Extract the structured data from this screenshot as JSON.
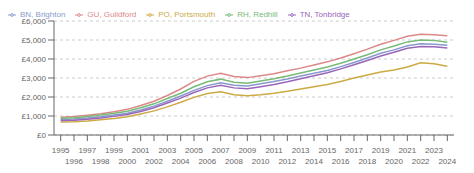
{
  "chart_data": {
    "type": "line",
    "x": [
      1995,
      1996,
      1997,
      1998,
      1999,
      2000,
      2001,
      2002,
      2003,
      2004,
      2005,
      2006,
      2007,
      2008,
      2009,
      2010,
      2011,
      2012,
      2013,
      2014,
      2015,
      2016,
      2017,
      2018,
      2019,
      2020,
      2021,
      2022,
      2023,
      2024
    ],
    "series": [
      {
        "name": "BN, Brighton",
        "color": "#8899cc",
        "values": [
          820,
          840,
          890,
          960,
          1050,
          1150,
          1320,
          1520,
          1780,
          2050,
          2350,
          2600,
          2750,
          2620,
          2580,
          2700,
          2820,
          2950,
          3100,
          3250,
          3400,
          3600,
          3820,
          4050,
          4300,
          4480,
          4700,
          4800,
          4780,
          4720
        ]
      },
      {
        "name": "GU, Guildford",
        "color": "#dd8888",
        "values": [
          940,
          970,
          1040,
          1120,
          1220,
          1350,
          1550,
          1780,
          2080,
          2420,
          2820,
          3100,
          3250,
          3080,
          3020,
          3120,
          3220,
          3380,
          3520,
          3680,
          3850,
          4050,
          4280,
          4520,
          4780,
          4980,
          5200,
          5300,
          5280,
          5220
        ]
      },
      {
        "name": "PO, Portsmouth",
        "color": "#ccaa44",
        "values": [
          680,
          700,
          740,
          800,
          870,
          960,
          1100,
          1270,
          1480,
          1720,
          1980,
          2180,
          2280,
          2120,
          2070,
          2120,
          2200,
          2300,
          2420,
          2540,
          2660,
          2820,
          3000,
          3160,
          3320,
          3420,
          3580,
          3800,
          3750,
          3620
        ]
      },
      {
        "name": "RH, Redhill",
        "color": "#77bb77",
        "values": [
          880,
          910,
          970,
          1050,
          1140,
          1250,
          1430,
          1640,
          1920,
          2200,
          2540,
          2800,
          2940,
          2780,
          2720,
          2840,
          2960,
          3100,
          3260,
          3420,
          3580,
          3780,
          4000,
          4220,
          4480,
          4680,
          4900,
          5000,
          4980,
          4880
        ]
      },
      {
        "name": "TN, Tonbridge",
        "color": "#9966bb",
        "values": [
          760,
          780,
          830,
          900,
          980,
          1080,
          1240,
          1430,
          1680,
          1940,
          2240,
          2480,
          2620,
          2480,
          2430,
          2540,
          2660,
          2800,
          2960,
          3120,
          3280,
          3480,
          3700,
          3920,
          4160,
          4360,
          4560,
          4660,
          4640,
          4580
        ]
      }
    ],
    "xlim": [
      1994.5,
      2024.5
    ],
    "xticks": [
      1995,
      1996,
      1997,
      1998,
      1999,
      2000,
      2001,
      2002,
      2003,
      2004,
      2005,
      2006,
      2007,
      2008,
      2009,
      2010,
      2011,
      2012,
      2013,
      2014,
      2015,
      2016,
      2017,
      2018,
      2019,
      2020,
      2021,
      2022,
      2023,
      2024
    ],
    "ylim": [
      0,
      6000
    ],
    "yticks": [
      {
        "value": 0,
        "label": "£0"
      },
      {
        "value": 1000,
        "label": "£1,000"
      },
      {
        "value": 2000,
        "label": "£2,000"
      },
      {
        "value": 3000,
        "label": "£3,000"
      },
      {
        "value": 4000,
        "label": "£4,000"
      },
      {
        "value": 5000,
        "label": "£5,000"
      },
      {
        "value": 6000,
        "label": "£6,000"
      }
    ],
    "grid": true,
    "legend": "upper left"
  }
}
